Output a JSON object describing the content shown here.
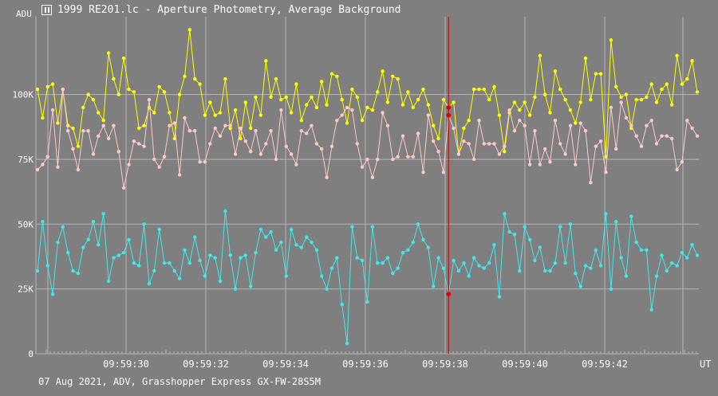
{
  "window": {
    "title": "1999 RE201.lc - Aperture Photometry, Average Background"
  },
  "footer": {
    "info": "07 Aug 2021, ADV, Grasshopper Express GX-FW-28S5M"
  },
  "chart_data": {
    "type": "line",
    "ylabel": "ADU",
    "xlabel": "UT",
    "ylim": [
      0,
      130000
    ],
    "yticks": [
      {
        "value": 0,
        "label": "0"
      },
      {
        "value": 25000,
        "label": "25K"
      },
      {
        "value": 50000,
        "label": "50K"
      },
      {
        "value": 75000,
        "label": "75K"
      },
      {
        "value": 100000,
        "label": "100K"
      }
    ],
    "xticks": [
      "09:59:30",
      "09:59:32",
      "09:59:34",
      "09:59:36",
      "09:59:38",
      "09:59:40",
      "09:59:42"
    ],
    "x_minor_ticks": 20,
    "grid": true,
    "cursor_index": 81,
    "colors": {
      "background": "#7f7f7f",
      "grid": "#b4b4b4",
      "cursor": "#c40000",
      "marker": "#d40000"
    },
    "series": [
      {
        "color": "#ffff00",
        "values": [
          102000,
          91000,
          103000,
          104000,
          89000,
          102000,
          88000,
          87000,
          80000,
          95000,
          100000,
          98000,
          93000,
          90000,
          116000,
          106000,
          100000,
          114000,
          102000,
          101000,
          87000,
          88000,
          95000,
          93000,
          103000,
          101000,
          93000,
          83000,
          100000,
          107000,
          125000,
          106000,
          104000,
          92000,
          97000,
          92000,
          93000,
          106000,
          87000,
          94000,
          83000,
          97000,
          87000,
          99000,
          92000,
          113000,
          99000,
          106000,
          98000,
          99000,
          93000,
          104000,
          90000,
          96000,
          99000,
          95000,
          105000,
          96000,
          108000,
          107000,
          98000,
          89000,
          102000,
          99000,
          90000,
          95000,
          94000,
          101000,
          109000,
          97000,
          107000,
          106000,
          96000,
          101000,
          95000,
          98000,
          102000,
          96000,
          88000,
          83000,
          98000,
          95000,
          97000,
          77000,
          87000,
          90000,
          102000,
          102000,
          102000,
          98000,
          103000,
          92000,
          78000,
          93000,
          97000,
          94000,
          97000,
          92000,
          99000,
          115000,
          100000,
          93000,
          109000,
          102000,
          98000,
          94000,
          89000,
          97000,
          114000,
          98000,
          108000,
          108000,
          76000,
          121000,
          103000,
          99000,
          100000,
          87000,
          98000,
          98000,
          99000,
          104000,
          97000,
          102000,
          104000,
          96000,
          115000,
          104000,
          106000,
          113000,
          101000
        ]
      },
      {
        "color": "#ffc8c8",
        "values": [
          71000,
          73000,
          76000,
          94000,
          72000,
          102000,
          86000,
          79000,
          71000,
          86000,
          86000,
          77000,
          84000,
          88000,
          83000,
          88000,
          78000,
          64000,
          73000,
          82000,
          81000,
          80000,
          98000,
          75000,
          72000,
          76000,
          88000,
          89000,
          69000,
          91000,
          86000,
          86000,
          74000,
          74000,
          81000,
          87000,
          84000,
          88000,
          88000,
          77000,
          87000,
          82000,
          78000,
          86000,
          77000,
          81000,
          86000,
          75000,
          94000,
          80000,
          77000,
          73000,
          86000,
          85000,
          88000,
          81000,
          79000,
          68000,
          80000,
          90000,
          92000,
          95000,
          94000,
          81000,
          72000,
          75000,
          68000,
          75000,
          93000,
          88000,
          75000,
          76000,
          84000,
          76000,
          76000,
          85000,
          70000,
          92000,
          82000,
          78000,
          70000,
          92000,
          87000,
          77000,
          82000,
          81000,
          75000,
          90000,
          81000,
          81000,
          81000,
          77000,
          80000,
          94000,
          86000,
          90000,
          88000,
          73000,
          86000,
          73000,
          79000,
          74000,
          90000,
          81000,
          77000,
          88000,
          73000,
          89000,
          86000,
          66000,
          80000,
          82000,
          70000,
          95000,
          79000,
          97000,
          91000,
          88000,
          84000,
          80000,
          88000,
          90000,
          81000,
          84000,
          84000,
          83000,
          71000,
          74000,
          90000,
          87000,
          84000
        ]
      },
      {
        "color": "#40e8ec",
        "values": [
          32000,
          51000,
          34000,
          23000,
          43000,
          49000,
          39000,
          32000,
          31000,
          41000,
          44000,
          51000,
          42000,
          54000,
          28000,
          37000,
          38000,
          39000,
          44000,
          35000,
          34000,
          50000,
          27000,
          32000,
          48000,
          35000,
          35000,
          32000,
          29000,
          40000,
          35000,
          45000,
          36000,
          30000,
          38000,
          37000,
          28000,
          55000,
          38000,
          25000,
          37000,
          38000,
          26000,
          39000,
          48000,
          45000,
          47000,
          40000,
          43000,
          30000,
          48000,
          42000,
          41000,
          45000,
          43000,
          40000,
          30000,
          25000,
          33000,
          37000,
          19000,
          4000,
          49000,
          37000,
          36000,
          20000,
          49000,
          35000,
          35000,
          37000,
          31000,
          33000,
          39000,
          40000,
          43000,
          50000,
          44000,
          41000,
          26000,
          37000,
          33000,
          23000,
          36000,
          32000,
          35000,
          30000,
          37000,
          34000,
          33000,
          35000,
          42000,
          22000,
          54000,
          47000,
          46000,
          32000,
          49000,
          44000,
          36000,
          41000,
          32000,
          32000,
          35000,
          49000,
          35000,
          50000,
          31000,
          26000,
          34000,
          33000,
          40000,
          34000,
          54000,
          25000,
          51000,
          37000,
          30000,
          53000,
          43000,
          40000,
          40000,
          17000,
          30000,
          38000,
          32000,
          35000,
          34000,
          39000,
          37000,
          42000,
          38000
        ]
      }
    ]
  }
}
